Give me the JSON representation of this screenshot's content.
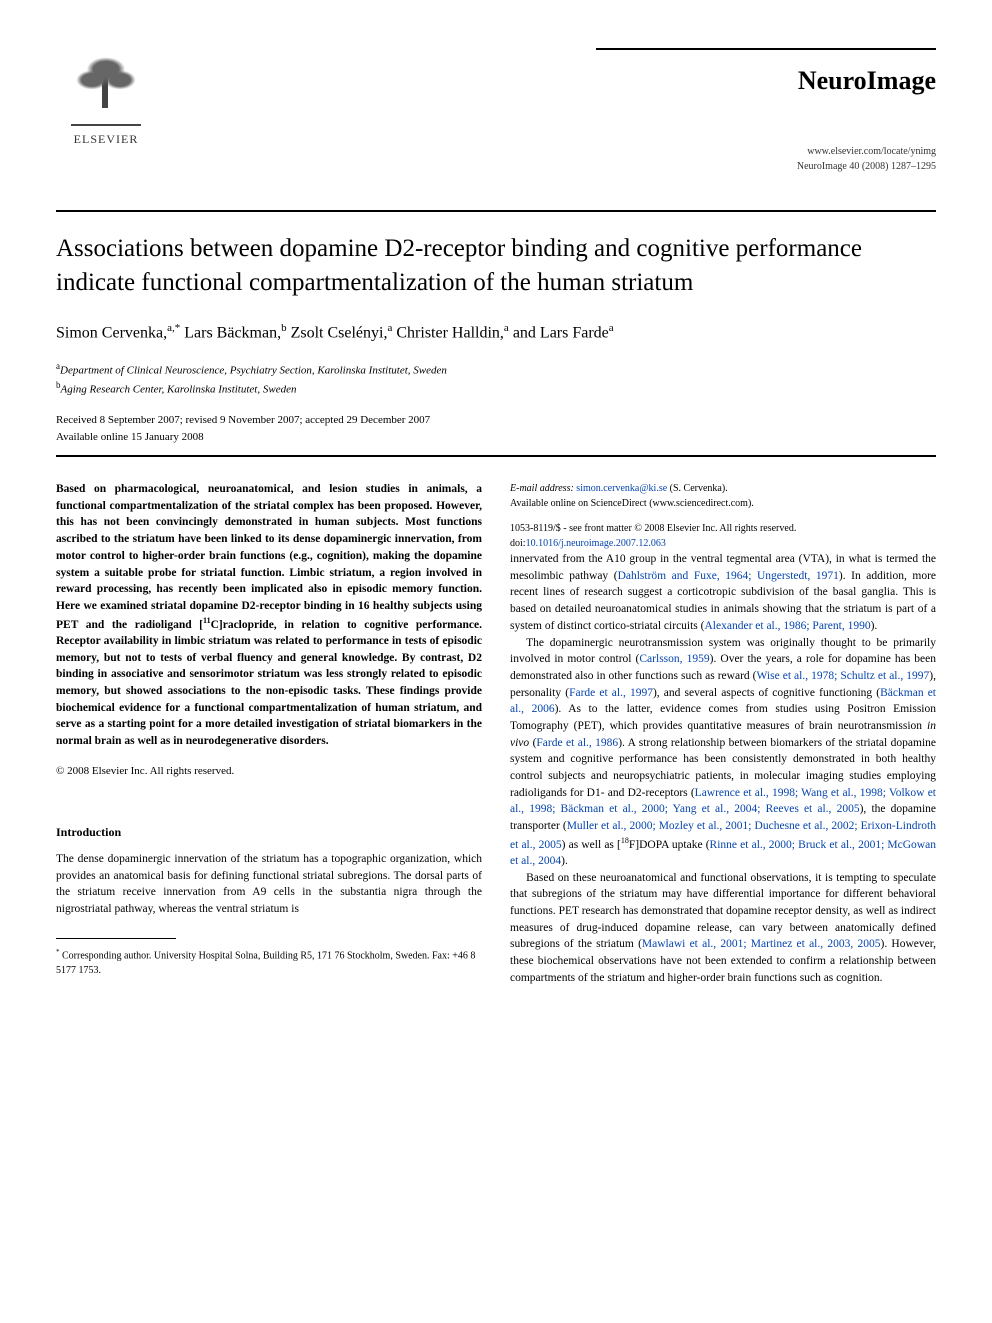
{
  "publisher": {
    "name": "ELSEVIER"
  },
  "journal": {
    "name": "NeuroImage",
    "locator": "www.elsevier.com/locate/ynimg",
    "citation": "NeuroImage 40 (2008) 1287–1295"
  },
  "article": {
    "title": "Associations between dopamine D2-receptor binding and cognitive performance indicate functional compartmentalization of the human striatum",
    "authors_html": "Simon Cervenka,<sup>a,*</sup> Lars Bäckman,<sup>b</sup> Zsolt Cselényi,<sup>a</sup> Christer Halldin,<sup>a</sup> and Lars Farde<sup>a</sup>",
    "affiliations": [
      {
        "mark": "a",
        "text": "Department of Clinical Neuroscience, Psychiatry Section, Karolinska Institutet, Sweden"
      },
      {
        "mark": "b",
        "text": "Aging Research Center, Karolinska Institutet, Sweden"
      }
    ],
    "dates_line1": "Received 8 September 2007; revised 9 November 2007; accepted 29 December 2007",
    "dates_line2": "Available online 15 January 2008"
  },
  "abstract": "Based on pharmacological, neuroanatomical, and lesion studies in animals, a functional compartmentalization of the striatal complex has been proposed. However, this has not been convincingly demonstrated in human subjects. Most functions ascribed to the striatum have been linked to its dense dopaminergic innervation, from motor control to higher-order brain functions (e.g., cognition), making the dopamine system a suitable probe for striatal function. Limbic striatum, a region involved in reward processing, has recently been implicated also in episodic memory function. Here we examined striatal dopamine D2-receptor binding in 16 healthy subjects using PET and the radioligand [<sup>11</sup>C]raclopride, in relation to cognitive performance. Receptor availability in limbic striatum was related to performance in tests of episodic memory, but not to tests of verbal fluency and general knowledge. By contrast, D2 binding in associative and sensorimotor striatum was less strongly related to episodic memory, but showed associations to the non-episodic tasks. These findings provide biochemical evidence for a functional compartmentalization of human striatum, and serve as a starting point for a more detailed investigation of striatal biomarkers in the normal brain as well as in neurodegenerative disorders.",
  "copyright": "© 2008 Elsevier Inc. All rights reserved.",
  "intro_heading": "Introduction",
  "body": {
    "p1": "The dense dopaminergic innervation of the striatum has a topographic organization, which provides an anatomical basis for defining functional striatal subregions. The dorsal parts of the striatum receive innervation from A9 cells in the substantia nigra through the nigrostriatal pathway, whereas the ventral striatum is",
    "p2a": "innervated from the A10 group in the ventral tegmental area (VTA), in what is termed the mesolimbic pathway (",
    "p2_cite1": "Dahlström and Fuxe, 1964; Ungerstedt, 1971",
    "p2b": "). In addition, more recent lines of research suggest a corticotropic subdivision of the basal ganglia. This is based on detailed neuroanatomical studies in animals showing that the striatum is part of a system of distinct cortico-striatal circuits (",
    "p2_cite2": "Alexander et al., 1986; Parent, 1990",
    "p2c": ").",
    "p3a": "The dopaminergic neurotransmission system was originally thought to be primarily involved in motor control (",
    "p3_cite1": "Carlsson, 1959",
    "p3b": "). Over the years, a role for dopamine has been demonstrated also in other functions such as reward (",
    "p3_cite2": "Wise et al., 1978; Schultz et al., 1997",
    "p3c": "), personality (",
    "p3_cite3": "Farde et al., 1997",
    "p3d": "), and several aspects of cognitive functioning (",
    "p3_cite4": "Bäckman et al., 2006",
    "p3e": "). As to the latter, evidence comes from studies using Positron Emission Tomography (PET), which provides quantitative measures of brain neurotransmission ",
    "p3_ital": "in vivo",
    "p3f": " (",
    "p3_cite5": "Farde et al., 1986",
    "p3g": "). A strong relationship between biomarkers of the striatal dopamine system and cognitive performance has been consistently demonstrated in both healthy control subjects and neuropsychiatric patients, in molecular imaging studies employing radioligands for D1- and D2-receptors (",
    "p3_cite6": "Lawrence et al., 1998; Wang et al., 1998; Volkow et al., 1998; Bäckman et al., 2000; Yang et al., 2004; Reeves et al., 2005",
    "p3h": "), the dopamine transporter (",
    "p3_cite7": "Muller et al., 2000; Mozley et al., 2001; Duchesne et al., 2002; Erixon-Lindroth et al., 2005",
    "p3i": ") as well as [",
    "p3j_label": "F]DOPA uptake (",
    "p3_cite8": "Rinne et al., 2000; Bruck et al., 2001; McGowan et al., 2004",
    "p3k": ").",
    "p4a": "Based on these neuroanatomical and functional observations, it is tempting to speculate that subregions of the striatum may have differential importance for different behavioral functions. PET research has demonstrated that dopamine receptor density, as well as indirect measures of drug-induced dopamine release, can vary between anatomically defined subregions of the striatum (",
    "p4_cite1": "Mawlawi et al., 2001; Martinez et al., 2003, 2005",
    "p4b": "). However, these biochemical observations have not been extended to confirm a relationship between compartments of the striatum and higher-order brain functions such as cognition."
  },
  "footnotes": {
    "corr": "Corresponding author. University Hospital Solna, Building R5, 171 76 Stockholm, Sweden. Fax: +46 8 5177 1753.",
    "email_label": "E-mail address:",
    "email": "simon.cervenka@ki.se",
    "email_paren": "(S. Cervenka).",
    "avail": "Available online on ScienceDirect (www.sciencedirect.com)."
  },
  "bottom": {
    "issn": "1053-8119/$ - see front matter © 2008 Elsevier Inc. All rights reserved.",
    "doi_label": "doi:",
    "doi": "10.1016/j.neuroimage.2007.12.063"
  },
  "fdopa_sup": "18"
}
